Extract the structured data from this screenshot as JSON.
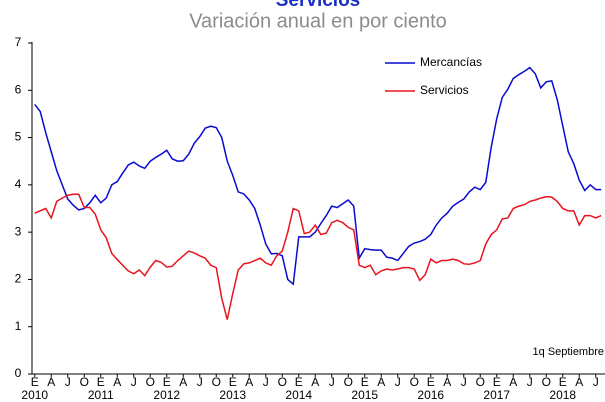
{
  "chart_data": {
    "type": "line",
    "title": "Servicios",
    "subtitle": "Variación anual en por ciento",
    "annotation": "1q Septiembre",
    "categories": [
      "E",
      null,
      null,
      "A",
      null,
      null,
      "J",
      null,
      null,
      "O",
      null,
      null,
      "E",
      null,
      null,
      "A",
      null,
      null,
      "J",
      null,
      null,
      "O",
      null,
      null,
      "E",
      null,
      null,
      "A",
      null,
      null,
      "J",
      null,
      null,
      "O",
      null,
      null,
      "E",
      null,
      null,
      "A",
      null,
      null,
      "J",
      null,
      null,
      "O",
      null,
      null,
      "E",
      null,
      null,
      "A",
      null,
      null,
      "J",
      null,
      null,
      "O",
      null,
      null,
      "E",
      null,
      null,
      "A",
      null,
      null,
      "J",
      null,
      null,
      "O",
      null,
      null,
      "E",
      null,
      null,
      "A",
      null,
      null,
      "J",
      null,
      null,
      "O",
      null,
      null,
      "E",
      null,
      null,
      "A",
      null,
      null,
      "J",
      null,
      null,
      "O",
      null,
      null,
      "E",
      null,
      null,
      "A",
      null,
      null,
      "J",
      null
    ],
    "years": [
      "2010",
      null,
      null,
      null,
      null,
      null,
      null,
      null,
      null,
      null,
      null,
      null,
      "2011",
      null,
      null,
      null,
      null,
      null,
      null,
      null,
      null,
      null,
      null,
      null,
      "2012",
      null,
      null,
      null,
      null,
      null,
      null,
      null,
      null,
      null,
      null,
      null,
      "2013",
      null,
      null,
      null,
      null,
      null,
      null,
      null,
      null,
      null,
      null,
      null,
      "2014",
      null,
      null,
      null,
      null,
      null,
      null,
      null,
      null,
      null,
      null,
      null,
      "2015",
      null,
      null,
      null,
      null,
      null,
      null,
      null,
      null,
      null,
      null,
      null,
      "2016",
      null,
      null,
      null,
      null,
      null,
      null,
      null,
      null,
      null,
      null,
      null,
      "2017",
      null,
      null,
      null,
      null,
      null,
      null,
      null,
      null,
      null,
      null,
      null,
      "2018",
      null,
      null,
      null,
      null,
      null,
      null,
      null
    ],
    "series": [
      {
        "name": "Mercancías",
        "color": "#0a0ad2",
        "values": [
          5.7,
          5.55,
          5.1,
          4.7,
          4.3,
          4.0,
          3.7,
          3.57,
          3.47,
          3.5,
          3.62,
          3.78,
          3.62,
          3.72,
          4.0,
          4.07,
          4.25,
          4.42,
          4.48,
          4.4,
          4.35,
          4.5,
          4.58,
          4.65,
          4.73,
          4.55,
          4.5,
          4.51,
          4.65,
          4.88,
          5.02,
          5.2,
          5.24,
          5.21,
          5.0,
          4.5,
          4.2,
          3.85,
          3.81,
          3.68,
          3.5,
          3.15,
          2.75,
          2.54,
          2.55,
          2.5,
          2.0,
          1.9,
          2.9,
          2.9,
          2.9,
          3.0,
          3.18,
          3.35,
          3.55,
          3.52,
          3.6,
          3.68,
          3.55,
          2.45,
          2.65,
          2.63,
          2.62,
          2.62,
          2.47,
          2.45,
          2.4,
          2.55,
          2.7,
          2.77,
          2.8,
          2.85,
          2.95,
          3.15,
          3.3,
          3.4,
          3.55,
          3.63,
          3.7,
          3.85,
          3.95,
          3.9,
          4.05,
          4.8,
          5.4,
          5.85,
          6.02,
          6.25,
          6.33,
          6.4,
          6.48,
          6.35,
          6.05,
          6.18,
          6.2,
          5.8,
          5.25,
          4.7,
          4.45,
          4.1,
          3.88,
          4.0,
          3.9,
          3.9
        ]
      },
      {
        "name": "Servicios",
        "color": "#e8141e",
        "values": [
          3.4,
          3.45,
          3.5,
          3.3,
          3.65,
          3.72,
          3.78,
          3.8,
          3.8,
          3.52,
          3.52,
          3.38,
          3.05,
          2.88,
          2.55,
          2.42,
          2.3,
          2.18,
          2.12,
          2.2,
          2.08,
          2.26,
          2.4,
          2.36,
          2.26,
          2.28,
          2.4,
          2.5,
          2.6,
          2.56,
          2.5,
          2.45,
          2.3,
          2.25,
          1.6,
          1.15,
          1.7,
          2.2,
          2.33,
          2.35,
          2.4,
          2.45,
          2.35,
          2.3,
          2.5,
          2.6,
          3.0,
          3.5,
          3.45,
          2.97,
          3.0,
          3.15,
          2.95,
          2.98,
          3.2,
          3.25,
          3.2,
          3.1,
          3.05,
          2.3,
          2.25,
          2.3,
          2.1,
          2.18,
          2.22,
          2.2,
          2.22,
          2.25,
          2.25,
          2.22,
          1.98,
          2.1,
          2.43,
          2.35,
          2.4,
          2.4,
          2.43,
          2.4,
          2.33,
          2.32,
          2.35,
          2.4,
          2.75,
          2.95,
          3.05,
          3.28,
          3.3,
          3.5,
          3.55,
          3.58,
          3.65,
          3.68,
          3.72,
          3.75,
          3.74,
          3.65,
          3.5,
          3.45,
          3.45,
          3.15,
          3.35,
          3.35,
          3.3,
          3.35
        ]
      }
    ],
    "ylim": [
      0,
      7
    ],
    "yticks": [
      0,
      1,
      2,
      3,
      4,
      5,
      6,
      7
    ],
    "grid": false
  }
}
